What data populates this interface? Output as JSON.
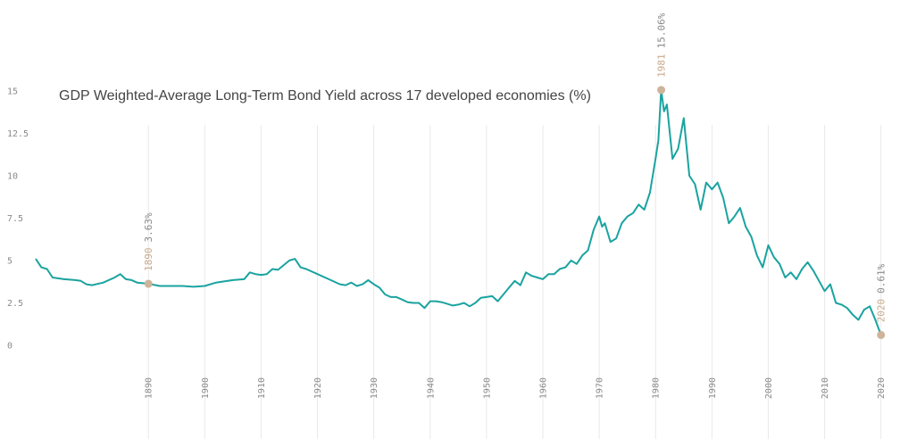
{
  "colors": {
    "line": "#1aa3a0",
    "grid": "#e9e9e9",
    "marker": "#cdb49a"
  },
  "chart_data": {
    "type": "line",
    "title": "GDP Weighted-Average Long-Term Bond Yield across 17 developed economies (%)",
    "xlabel": "",
    "ylabel": "",
    "xlim": [
      1870,
      2021
    ],
    "ylim": [
      0,
      15
    ],
    "y_ticks": [
      "0",
      "2.5",
      "5",
      "7.5",
      "10",
      "12.5",
      "15"
    ],
    "x_ticks": [
      "1890",
      "1900",
      "1910",
      "1920",
      "1930",
      "1940",
      "1950",
      "1960",
      "1970",
      "1980",
      "1990",
      "2000",
      "2010",
      "2020"
    ],
    "grid": "vertical",
    "annotations": [
      {
        "year": "1890",
        "value": "3.63%",
        "x": 1890,
        "y": 3.63
      },
      {
        "year": "1981",
        "value": "15.06%",
        "x": 1981,
        "y": 15.06
      },
      {
        "year": "2020",
        "value": "0.61%",
        "x": 2020,
        "y": 0.61
      }
    ],
    "series": [
      {
        "points": [
          [
            1870,
            5.1
          ],
          [
            1871,
            4.6
          ],
          [
            1872,
            4.5
          ],
          [
            1873,
            4.0
          ],
          [
            1875,
            3.9
          ],
          [
            1877,
            3.85
          ],
          [
            1878,
            3.8
          ],
          [
            1879,
            3.6
          ],
          [
            1880,
            3.55
          ],
          [
            1882,
            3.7
          ],
          [
            1884,
            4.0
          ],
          [
            1885,
            4.2
          ],
          [
            1886,
            3.9
          ],
          [
            1887,
            3.85
          ],
          [
            1888,
            3.7
          ],
          [
            1890,
            3.63
          ],
          [
            1892,
            3.5
          ],
          [
            1894,
            3.5
          ],
          [
            1896,
            3.5
          ],
          [
            1898,
            3.45
          ],
          [
            1900,
            3.5
          ],
          [
            1902,
            3.7
          ],
          [
            1903,
            3.75
          ],
          [
            1905,
            3.85
          ],
          [
            1907,
            3.9
          ],
          [
            1908,
            4.3
          ],
          [
            1909,
            4.2
          ],
          [
            1910,
            4.15
          ],
          [
            1911,
            4.2
          ],
          [
            1912,
            4.5
          ],
          [
            1913,
            4.45
          ],
          [
            1915,
            5.0
          ],
          [
            1916,
            5.1
          ],
          [
            1917,
            4.6
          ],
          [
            1918,
            4.5
          ],
          [
            1920,
            4.2
          ],
          [
            1922,
            3.9
          ],
          [
            1924,
            3.6
          ],
          [
            1925,
            3.55
          ],
          [
            1926,
            3.7
          ],
          [
            1927,
            3.5
          ],
          [
            1928,
            3.6
          ],
          [
            1929,
            3.85
          ],
          [
            1930,
            3.6
          ],
          [
            1931,
            3.4
          ],
          [
            1932,
            3.0
          ],
          [
            1933,
            2.85
          ],
          [
            1934,
            2.85
          ],
          [
            1935,
            2.7
          ],
          [
            1936,
            2.55
          ],
          [
            1937,
            2.5
          ],
          [
            1938,
            2.5
          ],
          [
            1939,
            2.2
          ],
          [
            1940,
            2.6
          ],
          [
            1941,
            2.6
          ],
          [
            1942,
            2.55
          ],
          [
            1943,
            2.45
          ],
          [
            1944,
            2.35
          ],
          [
            1945,
            2.4
          ],
          [
            1946,
            2.5
          ],
          [
            1947,
            2.3
          ],
          [
            1948,
            2.5
          ],
          [
            1949,
            2.8
          ],
          [
            1950,
            2.85
          ],
          [
            1951,
            2.9
          ],
          [
            1952,
            2.6
          ],
          [
            1953,
            3.0
          ],
          [
            1954,
            3.4
          ],
          [
            1955,
            3.8
          ],
          [
            1956,
            3.55
          ],
          [
            1957,
            4.3
          ],
          [
            1958,
            4.1
          ],
          [
            1959,
            4.0
          ],
          [
            1960,
            3.9
          ],
          [
            1961,
            4.2
          ],
          [
            1962,
            4.2
          ],
          [
            1963,
            4.5
          ],
          [
            1964,
            4.6
          ],
          [
            1965,
            5.0
          ],
          [
            1966,
            4.8
          ],
          [
            1967,
            5.3
          ],
          [
            1968,
            5.6
          ],
          [
            1969,
            6.8
          ],
          [
            1970,
            7.6
          ],
          [
            1970.5,
            7.0
          ],
          [
            1971,
            7.2
          ],
          [
            1972,
            6.1
          ],
          [
            1973,
            6.3
          ],
          [
            1974,
            7.2
          ],
          [
            1975,
            7.6
          ],
          [
            1976,
            7.8
          ],
          [
            1977,
            8.3
          ],
          [
            1978,
            8.0
          ],
          [
            1979,
            9.0
          ],
          [
            1980,
            11.0
          ],
          [
            1980.5,
            12.1
          ],
          [
            1981,
            15.06
          ],
          [
            1981.5,
            13.8
          ],
          [
            1982,
            14.2
          ],
          [
            1983,
            11.0
          ],
          [
            1984,
            11.6
          ],
          [
            1985,
            13.4
          ],
          [
            1986,
            10.0
          ],
          [
            1987,
            9.5
          ],
          [
            1988,
            8.0
          ],
          [
            1989,
            9.6
          ],
          [
            1990,
            9.2
          ],
          [
            1991,
            9.6
          ],
          [
            1992,
            8.7
          ],
          [
            1993,
            7.2
          ],
          [
            1994,
            7.6
          ],
          [
            1995,
            8.1
          ],
          [
            1996,
            7.0
          ],
          [
            1997,
            6.4
          ],
          [
            1998,
            5.3
          ],
          [
            1999,
            4.6
          ],
          [
            2000,
            5.9
          ],
          [
            2001,
            5.2
          ],
          [
            2002,
            4.8
          ],
          [
            2003,
            4.0
          ],
          [
            2004,
            4.3
          ],
          [
            2005,
            3.9
          ],
          [
            2006,
            4.5
          ],
          [
            2007,
            4.9
          ],
          [
            2008,
            4.4
          ],
          [
            2009,
            3.8
          ],
          [
            2010,
            3.2
          ],
          [
            2011,
            3.6
          ],
          [
            2012,
            2.5
          ],
          [
            2013,
            2.4
          ],
          [
            2014,
            2.2
          ],
          [
            2015,
            1.8
          ],
          [
            2016,
            1.5
          ],
          [
            2017,
            2.1
          ],
          [
            2018,
            2.3
          ],
          [
            2019,
            1.5
          ],
          [
            2020,
            0.61
          ]
        ]
      }
    ]
  }
}
